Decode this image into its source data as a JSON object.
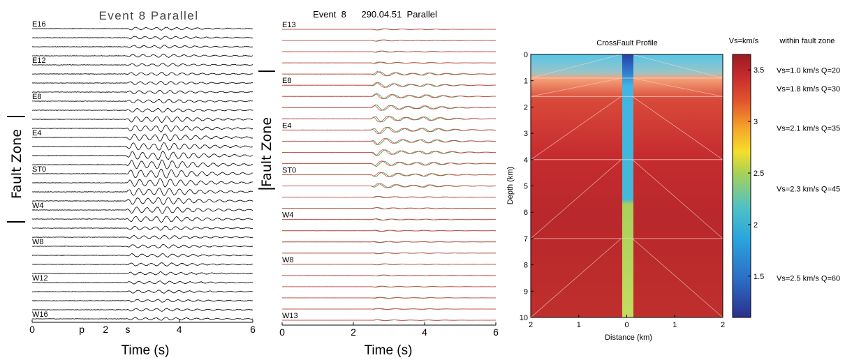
{
  "chart_data": [
    {
      "type": "line",
      "title": "Event  8  Parallel",
      "xlabel": "Time  (s)",
      "ylabel": "Fault Zone",
      "xlim": [
        0,
        6
      ],
      "x_ticks": [
        "0",
        "4",
        "6"
      ],
      "phase_labels": [
        {
          "label": "p",
          "t": 1.35
        },
        {
          "label": "2",
          "t": 2.0
        },
        {
          "label": "s",
          "t": 2.6
        }
      ],
      "n_traces": 33,
      "station_labels": [
        "E16",
        "E12",
        "E8",
        "E4",
        "ST0",
        "W4",
        "W8",
        "W12",
        "W16"
      ],
      "station_trace_index": [
        1,
        5,
        9,
        13,
        17,
        21,
        25,
        29,
        33
      ],
      "fault_zone_traces": [
        11,
        22
      ],
      "trace_color": "#000000"
    },
    {
      "type": "line",
      "title": "Event  8      290.04.51  Parallel",
      "xlabel": "Time  (s)",
      "ylabel": "Fault Zone",
      "xlim": [
        0,
        6
      ],
      "x_ticks": [
        "0",
        "2",
        "4",
        "6"
      ],
      "n_traces": 27,
      "station_labels": [
        "E13",
        "E8",
        "E4",
        "ST0",
        "W4",
        "W8",
        "W13"
      ],
      "station_trace_index": [
        1,
        6,
        10,
        14,
        18,
        22,
        27
      ],
      "fault_zone_traces": [
        5,
        15
      ],
      "series": [
        {
          "name": "",
          "color": "#1f9a3c"
        },
        {
          "name": "",
          "color": "#e0404a"
        }
      ]
    },
    {
      "type": "heatmap",
      "title": "CrossFault Profile",
      "xlabel": "Distance (km)",
      "ylabel": "Depth (km)",
      "xlim": [
        -2,
        2
      ],
      "ylim": [
        0,
        10
      ],
      "x_ticks": [
        "2",
        "1",
        "0",
        "1",
        "2"
      ],
      "y_ticks": [
        "0",
        "1",
        "2",
        "3",
        "4",
        "5",
        "6",
        "7",
        "8",
        "9",
        "10"
      ],
      "colorbar_label": "Vs=km/s",
      "colorbar_range": [
        1.1,
        3.65
      ],
      "colorbar_ticks": [
        "3.5",
        "3",
        "2.5",
        "2",
        "1.5"
      ],
      "colorbar_tick_values": [
        3.5,
        3.0,
        2.5,
        2.0,
        1.5
      ],
      "fault_zone_header": "within fault zone",
      "fault_zone_layers": [
        {
          "label": "Vs=1.0 km/s  Q=20",
          "depth": 0.6
        },
        {
          "label": "Vs=1.8 km/s  Q=30",
          "depth": 1.3
        },
        {
          "label": "Vs=2.1 km/s  Q=35",
          "depth": 2.8
        },
        {
          "label": "Vs=2.3 km/s  Q=45",
          "depth": 5.1
        },
        {
          "label": "Vs=2.5 km/s  Q=60",
          "depth": 8.5
        }
      ],
      "layer_boundaries_km": [
        0.9,
        1.6,
        4.0,
        7.0
      ]
    }
  ]
}
